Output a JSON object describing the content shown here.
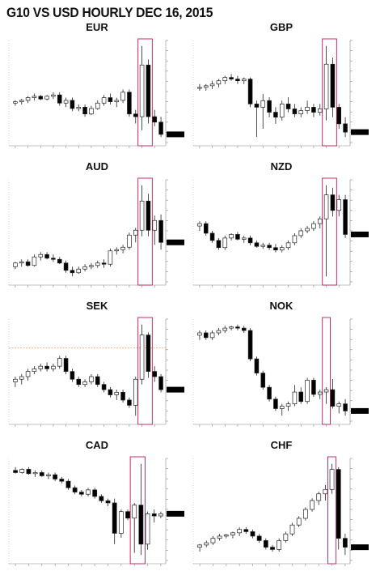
{
  "page": {
    "title": "G10 VS USD HOURLY DEC 16, 2015"
  },
  "colors": {
    "up_candle_fill": "#ffffff",
    "down_candle_fill": "#000000",
    "highlight_box": "#c2185b",
    "sek_reference_line": "#e8a87c",
    "last_price_tag": "#000000"
  },
  "chart_data": [
    {
      "type": "candlestick",
      "title": "EUR",
      "grid": false,
      "highlighted_bars": [
        20,
        21
      ],
      "candles": [
        {
          "o": 50,
          "h": 52,
          "l": 48,
          "c": 51
        },
        {
          "o": 51,
          "h": 53,
          "l": 49,
          "c": 52
        },
        {
          "o": 52,
          "h": 55,
          "l": 50,
          "c": 54
        },
        {
          "o": 54,
          "h": 57,
          "l": 52,
          "c": 55
        },
        {
          "o": 55,
          "h": 56,
          "l": 52,
          "c": 53
        },
        {
          "o": 53,
          "h": 56,
          "l": 52,
          "c": 55
        },
        {
          "o": 55,
          "h": 58,
          "l": 53,
          "c": 56
        },
        {
          "o": 56,
          "h": 58,
          "l": 48,
          "c": 50
        },
        {
          "o": 50,
          "h": 54,
          "l": 47,
          "c": 52
        },
        {
          "o": 52,
          "h": 54,
          "l": 44,
          "c": 46
        },
        {
          "o": 46,
          "h": 49,
          "l": 44,
          "c": 47
        },
        {
          "o": 47,
          "h": 49,
          "l": 40,
          "c": 42
        },
        {
          "o": 42,
          "h": 48,
          "l": 41,
          "c": 46
        },
        {
          "o": 46,
          "h": 52,
          "l": 45,
          "c": 50
        },
        {
          "o": 50,
          "h": 56,
          "l": 48,
          "c": 54
        },
        {
          "o": 54,
          "h": 57,
          "l": 49,
          "c": 51
        },
        {
          "o": 51,
          "h": 54,
          "l": 47,
          "c": 52
        },
        {
          "o": 52,
          "h": 60,
          "l": 50,
          "c": 58
        },
        {
          "o": 58,
          "h": 60,
          "l": 40,
          "c": 42
        },
        {
          "o": 42,
          "h": 45,
          "l": 35,
          "c": 40
        },
        {
          "o": 40,
          "h": 92,
          "l": 30,
          "c": 78
        },
        {
          "o": 78,
          "h": 82,
          "l": 35,
          "c": 40
        },
        {
          "o": 40,
          "h": 45,
          "l": 33,
          "c": 36
        },
        {
          "o": 36,
          "h": 40,
          "l": 25,
          "c": 27
        }
      ]
    },
    {
      "type": "candlestick",
      "title": "GBP",
      "grid": false,
      "highlighted_bars": [
        20,
        21
      ],
      "candles": [
        {
          "o": 70,
          "h": 72,
          "l": 68,
          "c": 70
        },
        {
          "o": 70,
          "h": 72,
          "l": 68,
          "c": 71
        },
        {
          "o": 71,
          "h": 74,
          "l": 69,
          "c": 72
        },
        {
          "o": 72,
          "h": 75,
          "l": 70,
          "c": 74
        },
        {
          "o": 74,
          "h": 77,
          "l": 72,
          "c": 76
        },
        {
          "o": 76,
          "h": 78,
          "l": 74,
          "c": 75
        },
        {
          "o": 75,
          "h": 77,
          "l": 72,
          "c": 74
        },
        {
          "o": 74,
          "h": 76,
          "l": 72,
          "c": 75
        },
        {
          "o": 75,
          "h": 76,
          "l": 58,
          "c": 60
        },
        {
          "o": 60,
          "h": 62,
          "l": 40,
          "c": 58
        },
        {
          "o": 58,
          "h": 66,
          "l": 45,
          "c": 62
        },
        {
          "o": 62,
          "h": 64,
          "l": 52,
          "c": 55
        },
        {
          "o": 55,
          "h": 58,
          "l": 48,
          "c": 52
        },
        {
          "o": 52,
          "h": 62,
          "l": 50,
          "c": 60
        },
        {
          "o": 60,
          "h": 64,
          "l": 55,
          "c": 57
        },
        {
          "o": 57,
          "h": 60,
          "l": 52,
          "c": 54
        },
        {
          "o": 54,
          "h": 58,
          "l": 52,
          "c": 56
        },
        {
          "o": 56,
          "h": 62,
          "l": 54,
          "c": 58
        },
        {
          "o": 58,
          "h": 60,
          "l": 52,
          "c": 55
        },
        {
          "o": 55,
          "h": 60,
          "l": 53,
          "c": 57
        },
        {
          "o": 57,
          "h": 95,
          "l": 50,
          "c": 84
        },
        {
          "o": 84,
          "h": 88,
          "l": 52,
          "c": 58
        },
        {
          "o": 58,
          "h": 60,
          "l": 45,
          "c": 48
        },
        {
          "o": 48,
          "h": 52,
          "l": 40,
          "c": 43
        }
      ]
    },
    {
      "type": "candlestick",
      "title": "AUD",
      "grid": false,
      "highlighted_bars": [
        20,
        21
      ],
      "candles": [
        {
          "o": 30,
          "h": 34,
          "l": 28,
          "c": 33
        },
        {
          "o": 33,
          "h": 36,
          "l": 30,
          "c": 34
        },
        {
          "o": 34,
          "h": 36,
          "l": 30,
          "c": 31
        },
        {
          "o": 31,
          "h": 40,
          "l": 30,
          "c": 38
        },
        {
          "o": 38,
          "h": 42,
          "l": 35,
          "c": 40
        },
        {
          "o": 40,
          "h": 42,
          "l": 36,
          "c": 37
        },
        {
          "o": 37,
          "h": 40,
          "l": 34,
          "c": 36
        },
        {
          "o": 36,
          "h": 38,
          "l": 32,
          "c": 33
        },
        {
          "o": 33,
          "h": 35,
          "l": 25,
          "c": 27
        },
        {
          "o": 27,
          "h": 30,
          "l": 22,
          "c": 25
        },
        {
          "o": 25,
          "h": 30,
          "l": 24,
          "c": 28
        },
        {
          "o": 28,
          "h": 32,
          "l": 26,
          "c": 30
        },
        {
          "o": 30,
          "h": 33,
          "l": 28,
          "c": 31
        },
        {
          "o": 31,
          "h": 35,
          "l": 29,
          "c": 33
        },
        {
          "o": 33,
          "h": 36,
          "l": 29,
          "c": 32
        },
        {
          "o": 32,
          "h": 45,
          "l": 30,
          "c": 43
        },
        {
          "o": 43,
          "h": 46,
          "l": 40,
          "c": 44
        },
        {
          "o": 44,
          "h": 48,
          "l": 41,
          "c": 46
        },
        {
          "o": 46,
          "h": 58,
          "l": 44,
          "c": 56
        },
        {
          "o": 56,
          "h": 62,
          "l": 50,
          "c": 60
        },
        {
          "o": 60,
          "h": 97,
          "l": 55,
          "c": 84
        },
        {
          "o": 84,
          "h": 90,
          "l": 55,
          "c": 60
        },
        {
          "o": 60,
          "h": 72,
          "l": 48,
          "c": 68
        },
        {
          "o": 68,
          "h": 73,
          "l": 44,
          "c": 50
        }
      ]
    },
    {
      "type": "candlestick",
      "title": "NZD",
      "grid": false,
      "highlighted_bars": [
        20,
        21
      ],
      "candles": [
        {
          "o": 62,
          "h": 66,
          "l": 58,
          "c": 64
        },
        {
          "o": 64,
          "h": 66,
          "l": 54,
          "c": 56
        },
        {
          "o": 56,
          "h": 58,
          "l": 48,
          "c": 50
        },
        {
          "o": 50,
          "h": 52,
          "l": 42,
          "c": 44
        },
        {
          "o": 44,
          "h": 54,
          "l": 42,
          "c": 52
        },
        {
          "o": 52,
          "h": 56,
          "l": 50,
          "c": 55
        },
        {
          "o": 55,
          "h": 57,
          "l": 50,
          "c": 51
        },
        {
          "o": 51,
          "h": 54,
          "l": 48,
          "c": 52
        },
        {
          "o": 52,
          "h": 54,
          "l": 46,
          "c": 48
        },
        {
          "o": 48,
          "h": 50,
          "l": 44,
          "c": 45
        },
        {
          "o": 45,
          "h": 48,
          "l": 43,
          "c": 46
        },
        {
          "o": 46,
          "h": 48,
          "l": 42,
          "c": 44
        },
        {
          "o": 44,
          "h": 47,
          "l": 40,
          "c": 42
        },
        {
          "o": 42,
          "h": 46,
          "l": 40,
          "c": 44
        },
        {
          "o": 44,
          "h": 50,
          "l": 42,
          "c": 48
        },
        {
          "o": 48,
          "h": 56,
          "l": 46,
          "c": 54
        },
        {
          "o": 54,
          "h": 60,
          "l": 52,
          "c": 58
        },
        {
          "o": 58,
          "h": 62,
          "l": 56,
          "c": 60
        },
        {
          "o": 60,
          "h": 66,
          "l": 58,
          "c": 64
        },
        {
          "o": 64,
          "h": 70,
          "l": 60,
          "c": 68
        },
        {
          "o": 68,
          "h": 96,
          "l": 20,
          "c": 88
        },
        {
          "o": 88,
          "h": 94,
          "l": 70,
          "c": 75
        },
        {
          "o": 75,
          "h": 88,
          "l": 70,
          "c": 84
        },
        {
          "o": 84,
          "h": 88,
          "l": 52,
          "c": 55
        }
      ]
    },
    {
      "type": "candlestick",
      "title": "SEK",
      "grid": false,
      "reference_line": 78,
      "highlighted_bars": [
        20,
        21
      ],
      "candles": [
        {
          "o": 52,
          "h": 56,
          "l": 48,
          "c": 54
        },
        {
          "o": 54,
          "h": 58,
          "l": 50,
          "c": 56
        },
        {
          "o": 56,
          "h": 62,
          "l": 53,
          "c": 60
        },
        {
          "o": 60,
          "h": 64,
          "l": 58,
          "c": 62
        },
        {
          "o": 62,
          "h": 66,
          "l": 60,
          "c": 64
        },
        {
          "o": 64,
          "h": 67,
          "l": 60,
          "c": 62
        },
        {
          "o": 62,
          "h": 66,
          "l": 60,
          "c": 64
        },
        {
          "o": 64,
          "h": 72,
          "l": 62,
          "c": 70
        },
        {
          "o": 70,
          "h": 72,
          "l": 58,
          "c": 60
        },
        {
          "o": 60,
          "h": 62,
          "l": 52,
          "c": 54
        },
        {
          "o": 54,
          "h": 56,
          "l": 48,
          "c": 50
        },
        {
          "o": 50,
          "h": 54,
          "l": 48,
          "c": 52
        },
        {
          "o": 52,
          "h": 58,
          "l": 50,
          "c": 56
        },
        {
          "o": 56,
          "h": 58,
          "l": 48,
          "c": 50
        },
        {
          "o": 50,
          "h": 52,
          "l": 44,
          "c": 46
        },
        {
          "o": 46,
          "h": 48,
          "l": 40,
          "c": 42
        },
        {
          "o": 42,
          "h": 46,
          "l": 38,
          "c": 44
        },
        {
          "o": 44,
          "h": 46,
          "l": 36,
          "c": 38
        },
        {
          "o": 38,
          "h": 40,
          "l": 32,
          "c": 34
        },
        {
          "o": 34,
          "h": 56,
          "l": 26,
          "c": 54
        },
        {
          "o": 54,
          "h": 96,
          "l": 50,
          "c": 88
        },
        {
          "o": 88,
          "h": 90,
          "l": 55,
          "c": 60
        },
        {
          "o": 60,
          "h": 64,
          "l": 52,
          "c": 56
        },
        {
          "o": 56,
          "h": 58,
          "l": 44,
          "c": 46
        }
      ]
    },
    {
      "type": "candlestick",
      "title": "NOK",
      "grid": false,
      "highlighted_bars": [
        20
      ],
      "candles": [
        {
          "o": 82,
          "h": 86,
          "l": 78,
          "c": 84
        },
        {
          "o": 84,
          "h": 86,
          "l": 78,
          "c": 80
        },
        {
          "o": 80,
          "h": 86,
          "l": 78,
          "c": 84
        },
        {
          "o": 84,
          "h": 88,
          "l": 82,
          "c": 86
        },
        {
          "o": 86,
          "h": 90,
          "l": 84,
          "c": 88
        },
        {
          "o": 88,
          "h": 90,
          "l": 86,
          "c": 89
        },
        {
          "o": 89,
          "h": 91,
          "l": 86,
          "c": 88
        },
        {
          "o": 88,
          "h": 90,
          "l": 84,
          "c": 86
        },
        {
          "o": 86,
          "h": 88,
          "l": 60,
          "c": 62
        },
        {
          "o": 62,
          "h": 64,
          "l": 48,
          "c": 50
        },
        {
          "o": 50,
          "h": 52,
          "l": 36,
          "c": 38
        },
        {
          "o": 38,
          "h": 40,
          "l": 26,
          "c": 28
        },
        {
          "o": 28,
          "h": 30,
          "l": 18,
          "c": 20
        },
        {
          "o": 20,
          "h": 24,
          "l": 14,
          "c": 22
        },
        {
          "o": 22,
          "h": 26,
          "l": 18,
          "c": 24
        },
        {
          "o": 24,
          "h": 40,
          "l": 22,
          "c": 34
        },
        {
          "o": 34,
          "h": 38,
          "l": 24,
          "c": 26
        },
        {
          "o": 26,
          "h": 46,
          "l": 24,
          "c": 44
        },
        {
          "o": 44,
          "h": 46,
          "l": 30,
          "c": 32
        },
        {
          "o": 32,
          "h": 36,
          "l": 28,
          "c": 34
        },
        {
          "o": 34,
          "h": 38,
          "l": 24,
          "c": 36
        },
        {
          "o": 36,
          "h": 45,
          "l": 20,
          "c": 22
        },
        {
          "o": 22,
          "h": 26,
          "l": 16,
          "c": 24
        },
        {
          "o": 24,
          "h": 28,
          "l": 14,
          "c": 18
        }
      ]
    },
    {
      "type": "candlestick",
      "title": "CAD",
      "grid": false,
      "highlighted_bars": [
        18,
        19
      ],
      "candles": [
        {
          "o": 88,
          "h": 91,
          "l": 85,
          "c": 86
        },
        {
          "o": 86,
          "h": 90,
          "l": 85,
          "c": 89
        },
        {
          "o": 89,
          "h": 91,
          "l": 84,
          "c": 85
        },
        {
          "o": 85,
          "h": 88,
          "l": 82,
          "c": 86
        },
        {
          "o": 86,
          "h": 88,
          "l": 82,
          "c": 83
        },
        {
          "o": 83,
          "h": 86,
          "l": 80,
          "c": 84
        },
        {
          "o": 84,
          "h": 86,
          "l": 78,
          "c": 80
        },
        {
          "o": 80,
          "h": 82,
          "l": 76,
          "c": 78
        },
        {
          "o": 78,
          "h": 80,
          "l": 70,
          "c": 72
        },
        {
          "o": 72,
          "h": 74,
          "l": 66,
          "c": 68
        },
        {
          "o": 68,
          "h": 70,
          "l": 64,
          "c": 66
        },
        {
          "o": 66,
          "h": 72,
          "l": 64,
          "c": 70
        },
        {
          "o": 70,
          "h": 72,
          "l": 62,
          "c": 64
        },
        {
          "o": 64,
          "h": 66,
          "l": 58,
          "c": 60
        },
        {
          "o": 60,
          "h": 62,
          "l": 55,
          "c": 58
        },
        {
          "o": 58,
          "h": 62,
          "l": 20,
          "c": 30
        },
        {
          "o": 30,
          "h": 52,
          "l": 26,
          "c": 50
        },
        {
          "o": 50,
          "h": 52,
          "l": 42,
          "c": 44
        },
        {
          "o": 44,
          "h": 58,
          "l": 12,
          "c": 56
        },
        {
          "o": 56,
          "h": 94,
          "l": 10,
          "c": 20
        },
        {
          "o": 20,
          "h": 50,
          "l": 15,
          "c": 48
        },
        {
          "o": 48,
          "h": 52,
          "l": 40,
          "c": 46
        },
        {
          "o": 46,
          "h": 50,
          "l": 44,
          "c": 48
        }
      ]
    },
    {
      "type": "candlestick",
      "title": "CHF",
      "grid": false,
      "highlighted_bars": [
        20
      ],
      "candles": [
        {
          "o": 22,
          "h": 25,
          "l": 18,
          "c": 24
        },
        {
          "o": 24,
          "h": 28,
          "l": 22,
          "c": 26
        },
        {
          "o": 26,
          "h": 32,
          "l": 24,
          "c": 30
        },
        {
          "o": 30,
          "h": 34,
          "l": 28,
          "c": 32
        },
        {
          "o": 32,
          "h": 34,
          "l": 30,
          "c": 33
        },
        {
          "o": 33,
          "h": 36,
          "l": 30,
          "c": 35
        },
        {
          "o": 35,
          "h": 40,
          "l": 32,
          "c": 38
        },
        {
          "o": 38,
          "h": 40,
          "l": 34,
          "c": 36
        },
        {
          "o": 36,
          "h": 38,
          "l": 30,
          "c": 32
        },
        {
          "o": 32,
          "h": 34,
          "l": 26,
          "c": 28
        },
        {
          "o": 28,
          "h": 30,
          "l": 20,
          "c": 22
        },
        {
          "o": 22,
          "h": 24,
          "l": 18,
          "c": 20
        },
        {
          "o": 20,
          "h": 30,
          "l": 18,
          "c": 28
        },
        {
          "o": 28,
          "h": 36,
          "l": 26,
          "c": 34
        },
        {
          "o": 34,
          "h": 44,
          "l": 32,
          "c": 42
        },
        {
          "o": 42,
          "h": 50,
          "l": 40,
          "c": 48
        },
        {
          "o": 48,
          "h": 58,
          "l": 46,
          "c": 56
        },
        {
          "o": 56,
          "h": 66,
          "l": 54,
          "c": 64
        },
        {
          "o": 64,
          "h": 72,
          "l": 60,
          "c": 70
        },
        {
          "o": 70,
          "h": 78,
          "l": 64,
          "c": 74
        },
        {
          "o": 74,
          "h": 97,
          "l": 70,
          "c": 92
        },
        {
          "o": 92,
          "h": 94,
          "l": 20,
          "c": 30
        },
        {
          "o": 30,
          "h": 34,
          "l": 15,
          "c": 22
        }
      ]
    }
  ]
}
